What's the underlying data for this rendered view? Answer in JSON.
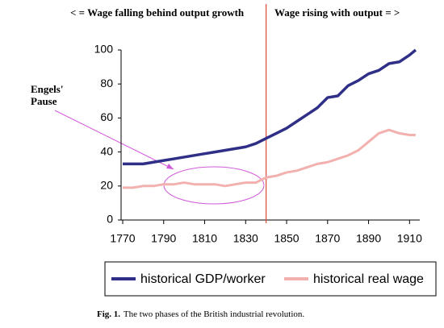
{
  "chart_data": {
    "type": "line",
    "left_heading": "< = Wage falling behind output growth",
    "right_heading": "Wage rising with output = >",
    "annotation": [
      "Engels'",
      "Pause"
    ],
    "divider": 1840,
    "x": [
      1770,
      1775,
      1780,
      1785,
      1790,
      1795,
      1800,
      1805,
      1810,
      1815,
      1820,
      1825,
      1830,
      1835,
      1840,
      1845,
      1850,
      1855,
      1860,
      1865,
      1870,
      1875,
      1880,
      1885,
      1890,
      1895,
      1900,
      1905,
      1910,
      1913
    ],
    "series": [
      {
        "name": "historical GDP/worker",
        "color": "#2f2f87",
        "values": [
          33,
          33,
          33,
          34,
          35,
          36,
          37,
          38,
          39,
          40,
          41,
          42,
          43,
          45,
          48,
          51,
          54,
          58,
          62,
          66,
          72,
          73,
          79,
          82,
          86,
          88,
          92,
          93,
          97,
          100
        ]
      },
      {
        "name": "historical real wage",
        "color": "#f2b1ae",
        "values": [
          19,
          19,
          20,
          20,
          21,
          21,
          22,
          21,
          21,
          21,
          20,
          21,
          22,
          22,
          25,
          26,
          28,
          29,
          31,
          33,
          34,
          36,
          38,
          41,
          46,
          51,
          53,
          51,
          50,
          50
        ]
      }
    ],
    "xlim": [
      1770,
      1915
    ],
    "xticks": [
      1770,
      1790,
      1810,
      1830,
      1850,
      1870,
      1890,
      1910
    ],
    "ylim": [
      0,
      100
    ],
    "yticks": [
      0,
      20,
      40,
      60,
      80,
      100
    ],
    "caption_label": "Fig. 1.",
    "caption": "The two phases of the British industrial revolution."
  }
}
